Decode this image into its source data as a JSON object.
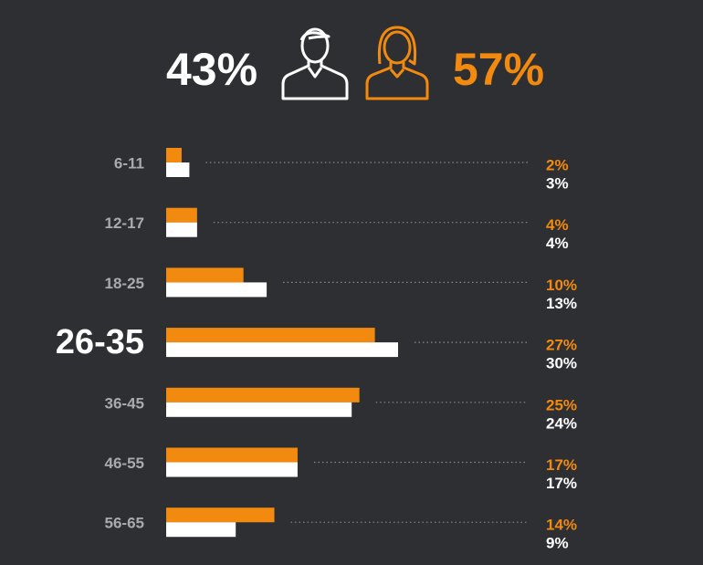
{
  "chart_data": {
    "type": "bar",
    "orientation": "horizontal",
    "annotations": [
      "43%",
      "57%"
    ],
    "categories": [
      "6-11",
      "12-17",
      "18-25",
      "26-35",
      "36-45",
      "46-55",
      "56-65"
    ],
    "highlight_index": 3,
    "series": [
      {
        "color": "#f28a0f",
        "values": [
          2,
          4,
          10,
          27,
          25,
          17,
          14
        ],
        "value_labels": [
          "2%",
          "4%",
          "10%",
          "27%",
          "25%",
          "17%",
          "14%"
        ]
      },
      {
        "color": "#ffffff",
        "values": [
          3,
          4,
          13,
          30,
          24,
          17,
          9
        ],
        "value_labels": [
          "3%",
          "4%",
          "13%",
          "30%",
          "24%",
          "17%",
          "9%"
        ]
      }
    ]
  }
}
